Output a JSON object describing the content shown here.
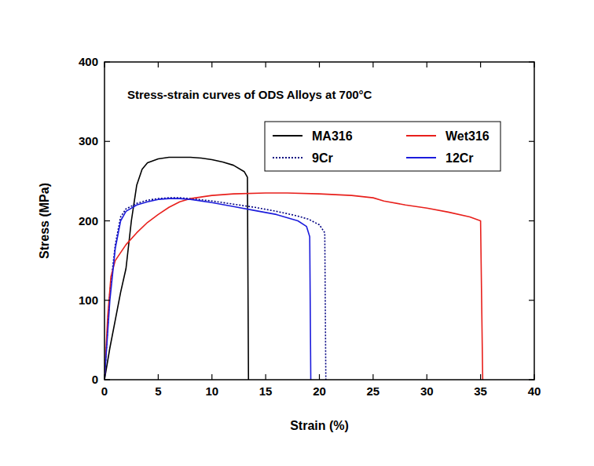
{
  "chart_data": {
    "type": "line",
    "title": "Stress-strain curves of ODS Alloys at 700°C",
    "x_label": "Strain (%)",
    "y_label": "Stress (MPa)",
    "xlim": [
      0,
      40
    ],
    "ylim": [
      0,
      400
    ],
    "xticks": [
      0,
      5,
      10,
      15,
      20,
      25,
      30,
      35,
      40
    ],
    "yticks": [
      0,
      100,
      200,
      300,
      400
    ],
    "grid": false,
    "legend": "upper right",
    "series": [
      {
        "name": "MA316",
        "color": "#000000",
        "line_style": "solid",
        "x": [
          0,
          0.5,
          1,
          1.5,
          2,
          2.5,
          3,
          3.5,
          4,
          5,
          6,
          7,
          8,
          9,
          10,
          11,
          12,
          13,
          13.3,
          13.4
        ],
        "values": [
          0,
          40,
          75,
          110,
          140,
          200,
          245,
          265,
          273,
          278,
          280,
          280,
          280,
          279,
          277,
          274,
          270,
          262,
          255,
          0
        ]
      },
      {
        "name": "9Cr",
        "color": "#000080",
        "line_style": "dotted",
        "x": [
          0,
          0.5,
          1,
          1.5,
          2,
          3,
          4,
          5,
          6,
          7,
          8,
          10,
          12,
          14,
          16,
          18,
          19,
          20,
          20.5,
          20.6
        ],
        "values": [
          0,
          110,
          170,
          205,
          215,
          222,
          226,
          228,
          229,
          229,
          228,
          225,
          221,
          217,
          212,
          206,
          202,
          195,
          185,
          0
        ]
      },
      {
        "name": "Wet316",
        "color": "#e8201c",
        "line_style": "solid",
        "x": [
          0,
          0.3,
          0.6,
          1,
          2,
          3,
          4,
          5,
          6,
          7,
          8,
          10,
          12,
          15,
          17,
          20,
          23,
          25,
          26,
          28,
          30,
          32,
          34,
          35,
          35.2
        ],
        "values": [
          0,
          80,
          130,
          150,
          170,
          185,
          198,
          208,
          217,
          224,
          228,
          232,
          234,
          235,
          235,
          234,
          232,
          229,
          225,
          220,
          216,
          211,
          205,
          200,
          0
        ]
      },
      {
        "name": "12Cr",
        "color": "#1c1cdc",
        "line_style": "solid",
        "x": [
          0,
          0.5,
          1,
          1.5,
          2,
          3,
          4,
          5,
          6,
          7,
          8,
          10,
          12,
          14,
          16,
          18,
          18.8,
          19.1,
          19.2
        ],
        "values": [
          0,
          100,
          165,
          200,
          212,
          220,
          224,
          227,
          228,
          228,
          227,
          223,
          218,
          213,
          208,
          200,
          193,
          180,
          0
        ]
      }
    ]
  }
}
